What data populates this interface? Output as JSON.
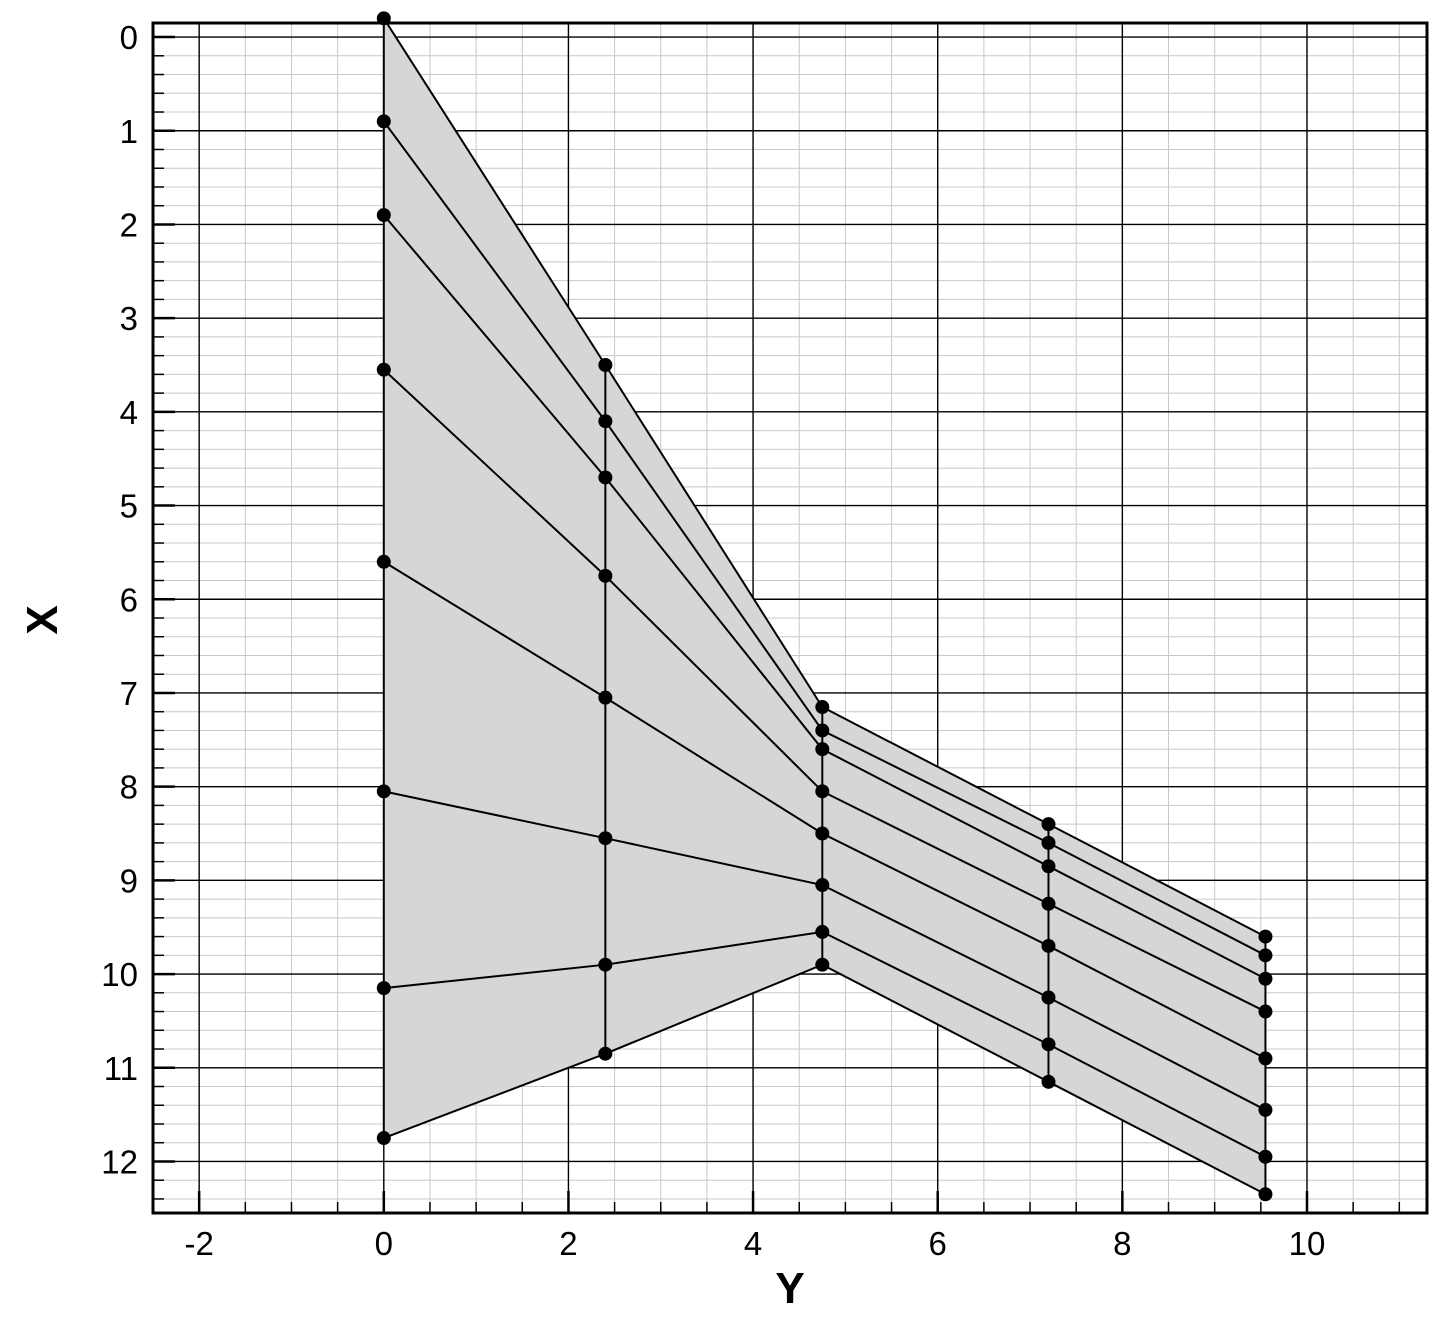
{
  "chart_data": {
    "type": "line",
    "xlabel": "Y",
    "ylabel": "X",
    "xlim": [
      -2.5,
      11.3
    ],
    "ylim": [
      12.55,
      -0.15
    ],
    "y_axis_inverted": true,
    "grid": true,
    "minor_grid": true,
    "x_ticks": [
      -2,
      0,
      2,
      4,
      6,
      8,
      10
    ],
    "x_tick_labels": [
      "-2",
      "0",
      "2",
      "4",
      "6",
      "8",
      "10"
    ],
    "y_ticks": [
      0,
      1,
      2,
      3,
      4,
      5,
      6,
      7,
      8,
      9,
      10,
      11,
      12
    ],
    "y_tick_labels": [
      "0",
      "1",
      "2",
      "3",
      "4",
      "5",
      "6",
      "7",
      "8",
      "9",
      "10",
      "11",
      "12"
    ],
    "fill_color": "#d6d6d6",
    "line_color": "#000000",
    "columns_y": [
      0,
      2.4,
      4.75,
      7.2,
      9.55
    ],
    "spanwise_lines": [
      [
        -0.2,
        3.5,
        7.15,
        8.4,
        9.6
      ],
      [
        0.9,
        4.1,
        7.4,
        8.6,
        9.8
      ],
      [
        1.9,
        4.7,
        7.6,
        8.85,
        10.05
      ],
      [
        3.55,
        5.75,
        8.05,
        9.25,
        10.4
      ],
      [
        5.6,
        7.05,
        8.5,
        9.7,
        10.9
      ],
      [
        8.05,
        8.55,
        9.05,
        10.25,
        11.45
      ],
      [
        10.15,
        9.9,
        9.55,
        10.75,
        11.95
      ],
      [
        11.75,
        10.85,
        9.9,
        11.15,
        12.35
      ]
    ]
  }
}
